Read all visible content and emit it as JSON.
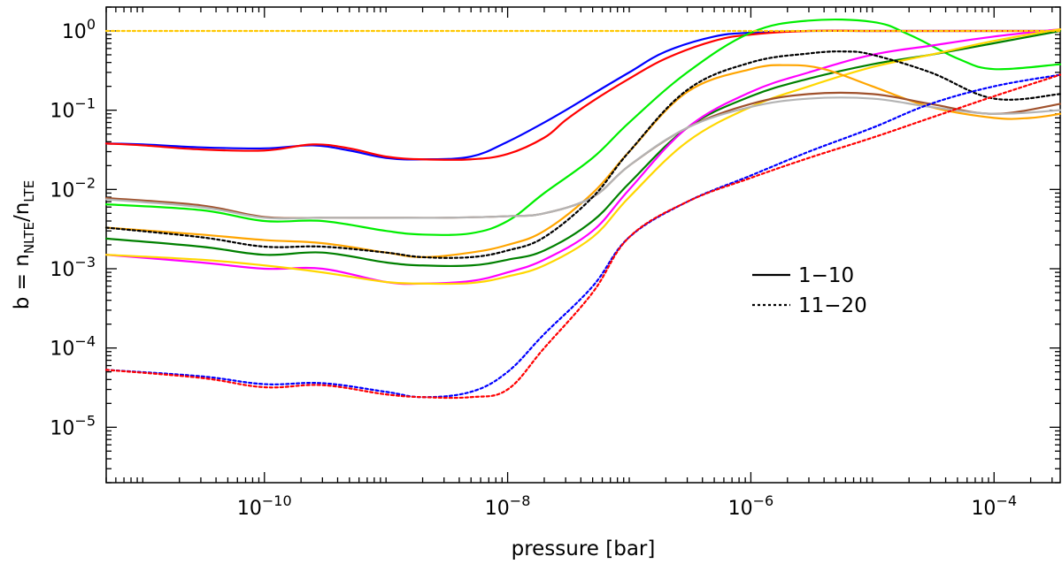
{
  "chart_data": {
    "type": "line",
    "title": "",
    "xlabel": "pressure [bar]",
    "ylabel": "b = nNLTE/nLTE",
    "ylabel_parts": {
      "lead": "b = n",
      "sub1": "NLTE",
      "mid": "/n",
      "sub2": "LTE"
    },
    "x_scale": "log",
    "y_scale": "log",
    "xlim": [
      5e-12,
      0.00035
    ],
    "ylim": [
      2e-06,
      2
    ],
    "xticks": [
      {
        "value": 1e-10,
        "base": "10",
        "exp": "−10"
      },
      {
        "value": 1e-08,
        "base": "10",
        "exp": "−8"
      },
      {
        "value": 1e-06,
        "base": "10",
        "exp": "−6"
      },
      {
        "value": 0.0001,
        "base": "10",
        "exp": "−4"
      }
    ],
    "yticks": [
      {
        "value": 1,
        "base": "10",
        "exp": "0"
      },
      {
        "value": 0.1,
        "base": "10",
        "exp": "−1"
      },
      {
        "value": 0.01,
        "base": "10",
        "exp": "−2"
      },
      {
        "value": 0.001,
        "base": "10",
        "exp": "−3"
      },
      {
        "value": 0.0001,
        "base": "10",
        "exp": "−4"
      },
      {
        "value": 1e-05,
        "base": "10",
        "exp": "−5"
      }
    ],
    "legend": {
      "position": "center-right",
      "entries": [
        {
          "label": "1−10",
          "style": "solid"
        },
        {
          "label": "11−20",
          "style": "dotted"
        }
      ]
    },
    "series": [
      {
        "color": "#0000ff",
        "style": "solid",
        "x": [
          5e-12,
          1e-11,
          3e-11,
          1e-10,
          2.5e-10,
          5e-10,
          1e-09,
          2e-09,
          5e-09,
          1e-08,
          2e-08,
          3e-08,
          5e-08,
          1e-07,
          2e-07,
          5e-07,
          1e-06,
          3e-06,
          1e-05,
          0.0001,
          0.00035
        ],
        "y": [
          0.038,
          0.037,
          0.034,
          0.033,
          0.036,
          0.031,
          0.025,
          0.024,
          0.026,
          0.04,
          0.07,
          0.1,
          0.16,
          0.3,
          0.55,
          0.85,
          0.95,
          1.0,
          1.0,
          1.0,
          1.0
        ]
      },
      {
        "color": "#ff0000",
        "style": "solid",
        "x": [
          5e-12,
          1e-11,
          3e-11,
          1e-10,
          2.5e-10,
          5e-10,
          1e-09,
          2e-09,
          5e-09,
          1e-08,
          2e-08,
          3e-08,
          5e-08,
          1e-07,
          2e-07,
          5e-07,
          1e-06,
          3e-06,
          1e-05,
          0.0001,
          0.00035
        ],
        "y": [
          0.038,
          0.036,
          0.032,
          0.031,
          0.037,
          0.033,
          0.026,
          0.024,
          0.024,
          0.028,
          0.045,
          0.075,
          0.13,
          0.25,
          0.45,
          0.75,
          0.9,
          1.0,
          1.0,
          1.0,
          1.0
        ]
      },
      {
        "color": "#00ee00",
        "style": "solid",
        "x": [
          5e-12,
          3e-11,
          1e-10,
          3e-10,
          1e-09,
          2e-09,
          5e-09,
          1e-08,
          2e-08,
          5e-08,
          1e-07,
          3e-07,
          1e-06,
          3e-06,
          1e-05,
          2e-05,
          5e-05,
          0.0001,
          0.00035
        ],
        "y": [
          0.0065,
          0.0055,
          0.004,
          0.004,
          0.003,
          0.0027,
          0.0028,
          0.004,
          0.009,
          0.025,
          0.07,
          0.3,
          0.95,
          1.35,
          1.3,
          0.9,
          0.45,
          0.33,
          0.38
        ]
      },
      {
        "color": "#008000",
        "style": "solid",
        "x": [
          5e-12,
          3e-11,
          1e-10,
          3e-10,
          1e-09,
          2e-09,
          5e-09,
          1e-08,
          2e-08,
          5e-08,
          1e-07,
          3e-07,
          1e-06,
          3e-06,
          1e-05,
          3e-05,
          0.0001,
          0.00035
        ],
        "y": [
          0.0024,
          0.0019,
          0.0015,
          0.0016,
          0.0012,
          0.0011,
          0.0011,
          0.0013,
          0.0017,
          0.004,
          0.012,
          0.06,
          0.15,
          0.25,
          0.38,
          0.5,
          0.7,
          1.0
        ]
      },
      {
        "color": "#ff00ff",
        "style": "solid",
        "x": [
          5e-12,
          3e-11,
          1e-10,
          3e-10,
          1e-09,
          2e-09,
          5e-09,
          1e-08,
          2e-08,
          5e-08,
          1e-07,
          3e-07,
          1e-06,
          3e-06,
          1e-05,
          3e-05,
          0.0001,
          0.00035
        ],
        "y": [
          0.0015,
          0.0012,
          0.001,
          0.001,
          0.00068,
          0.00065,
          0.0007,
          0.0009,
          0.0013,
          0.003,
          0.01,
          0.06,
          0.17,
          0.3,
          0.5,
          0.65,
          0.85,
          1.05
        ]
      },
      {
        "color": "#ffd700",
        "style": "solid",
        "x": [
          5e-12,
          3e-11,
          1e-10,
          3e-10,
          1e-09,
          2e-09,
          5e-09,
          1e-08,
          2e-08,
          5e-08,
          1e-07,
          3e-07,
          1e-06,
          3e-06,
          1e-05,
          3e-05,
          0.0001,
          0.00035
        ],
        "y": [
          0.0015,
          0.0013,
          0.0011,
          0.0009,
          0.00068,
          0.00065,
          0.00066,
          0.0008,
          0.0011,
          0.0025,
          0.008,
          0.04,
          0.11,
          0.2,
          0.35,
          0.5,
          0.75,
          1.05
        ]
      },
      {
        "color": "#ffa500",
        "style": "solid",
        "x": [
          5e-12,
          3e-11,
          1e-10,
          3e-10,
          1e-09,
          2e-09,
          5e-09,
          1e-08,
          2e-08,
          5e-08,
          1e-07,
          3e-07,
          1e-06,
          2e-06,
          4e-06,
          1e-05,
          3e-05,
          0.0001,
          0.0002,
          0.00035
        ],
        "y": [
          0.0033,
          0.0027,
          0.0023,
          0.0021,
          0.0016,
          0.0014,
          0.0016,
          0.002,
          0.003,
          0.009,
          0.03,
          0.17,
          0.33,
          0.37,
          0.33,
          0.2,
          0.11,
          0.08,
          0.08,
          0.09
        ]
      },
      {
        "color": "#a0522d",
        "style": "solid",
        "x": [
          5e-12,
          3e-11,
          1e-10,
          3e-10,
          1e-09,
          3e-09,
          1e-08,
          2e-08,
          5e-08,
          1e-07,
          3e-07,
          1e-06,
          3e-06,
          1e-05,
          3e-05,
          0.0001,
          0.00035
        ],
        "y": [
          0.0078,
          0.0063,
          0.0045,
          0.0044,
          0.0044,
          0.0044,
          0.0046,
          0.005,
          0.008,
          0.02,
          0.06,
          0.12,
          0.16,
          0.16,
          0.12,
          0.09,
          0.12
        ]
      },
      {
        "color": "#b4b4b4",
        "style": "solid",
        "x": [
          5e-12,
          3e-11,
          1e-10,
          3e-10,
          1e-09,
          3e-09,
          1e-08,
          2e-08,
          5e-08,
          1e-07,
          3e-07,
          1e-06,
          3e-06,
          1e-05,
          3e-05,
          0.0001,
          0.00035
        ],
        "y": [
          0.0075,
          0.006,
          0.0044,
          0.0044,
          0.0044,
          0.0044,
          0.0046,
          0.005,
          0.008,
          0.02,
          0.06,
          0.11,
          0.14,
          0.14,
          0.11,
          0.09,
          0.1
        ]
      },
      {
        "color": "#ffc800",
        "style": "dotted",
        "x": [
          5e-12,
          1e-06,
          0.00035
        ],
        "y": [
          1.0,
          1.0,
          1.0
        ]
      },
      {
        "color": "#000000",
        "style": "dotted",
        "x": [
          5e-12,
          3e-11,
          1e-10,
          3e-10,
          1e-09,
          2e-09,
          5e-09,
          1e-08,
          2e-08,
          5e-08,
          1e-07,
          3e-07,
          1e-06,
          3e-06,
          6e-06,
          1e-05,
          3e-05,
          0.0001,
          0.00035
        ],
        "y": [
          0.0033,
          0.0025,
          0.0019,
          0.0019,
          0.0016,
          0.0014,
          0.0014,
          0.0017,
          0.0025,
          0.008,
          0.03,
          0.18,
          0.4,
          0.52,
          0.55,
          0.5,
          0.3,
          0.14,
          0.16
        ]
      },
      {
        "color": "#0000ff",
        "style": "dotted",
        "x": [
          5e-12,
          3e-11,
          1e-10,
          3e-10,
          1e-09,
          2e-09,
          5e-09,
          1e-08,
          2e-08,
          5e-08,
          1e-07,
          3e-07,
          1e-06,
          3e-06,
          1e-05,
          3e-05,
          0.0001,
          0.00035
        ],
        "y": [
          5.3e-05,
          4.4e-05,
          3.5e-05,
          3.6e-05,
          2.8e-05,
          2.4e-05,
          2.8e-05,
          5e-05,
          0.00015,
          0.0006,
          0.0025,
          0.007,
          0.015,
          0.03,
          0.06,
          0.12,
          0.2,
          0.28
        ]
      },
      {
        "color": "#ff0000",
        "style": "dotted",
        "x": [
          5e-12,
          3e-11,
          1e-10,
          3e-10,
          1e-09,
          2e-09,
          5e-09,
          1e-08,
          2e-08,
          5e-08,
          1e-07,
          3e-07,
          1e-06,
          3e-06,
          1e-05,
          3e-05,
          0.0001,
          0.00035
        ],
        "y": [
          5.3e-05,
          4.2e-05,
          3.2e-05,
          3.4e-05,
          2.6e-05,
          2.4e-05,
          2.4e-05,
          3e-05,
          0.0001,
          0.0005,
          0.0025,
          0.007,
          0.014,
          0.025,
          0.045,
          0.08,
          0.15,
          0.28
        ]
      }
    ]
  }
}
